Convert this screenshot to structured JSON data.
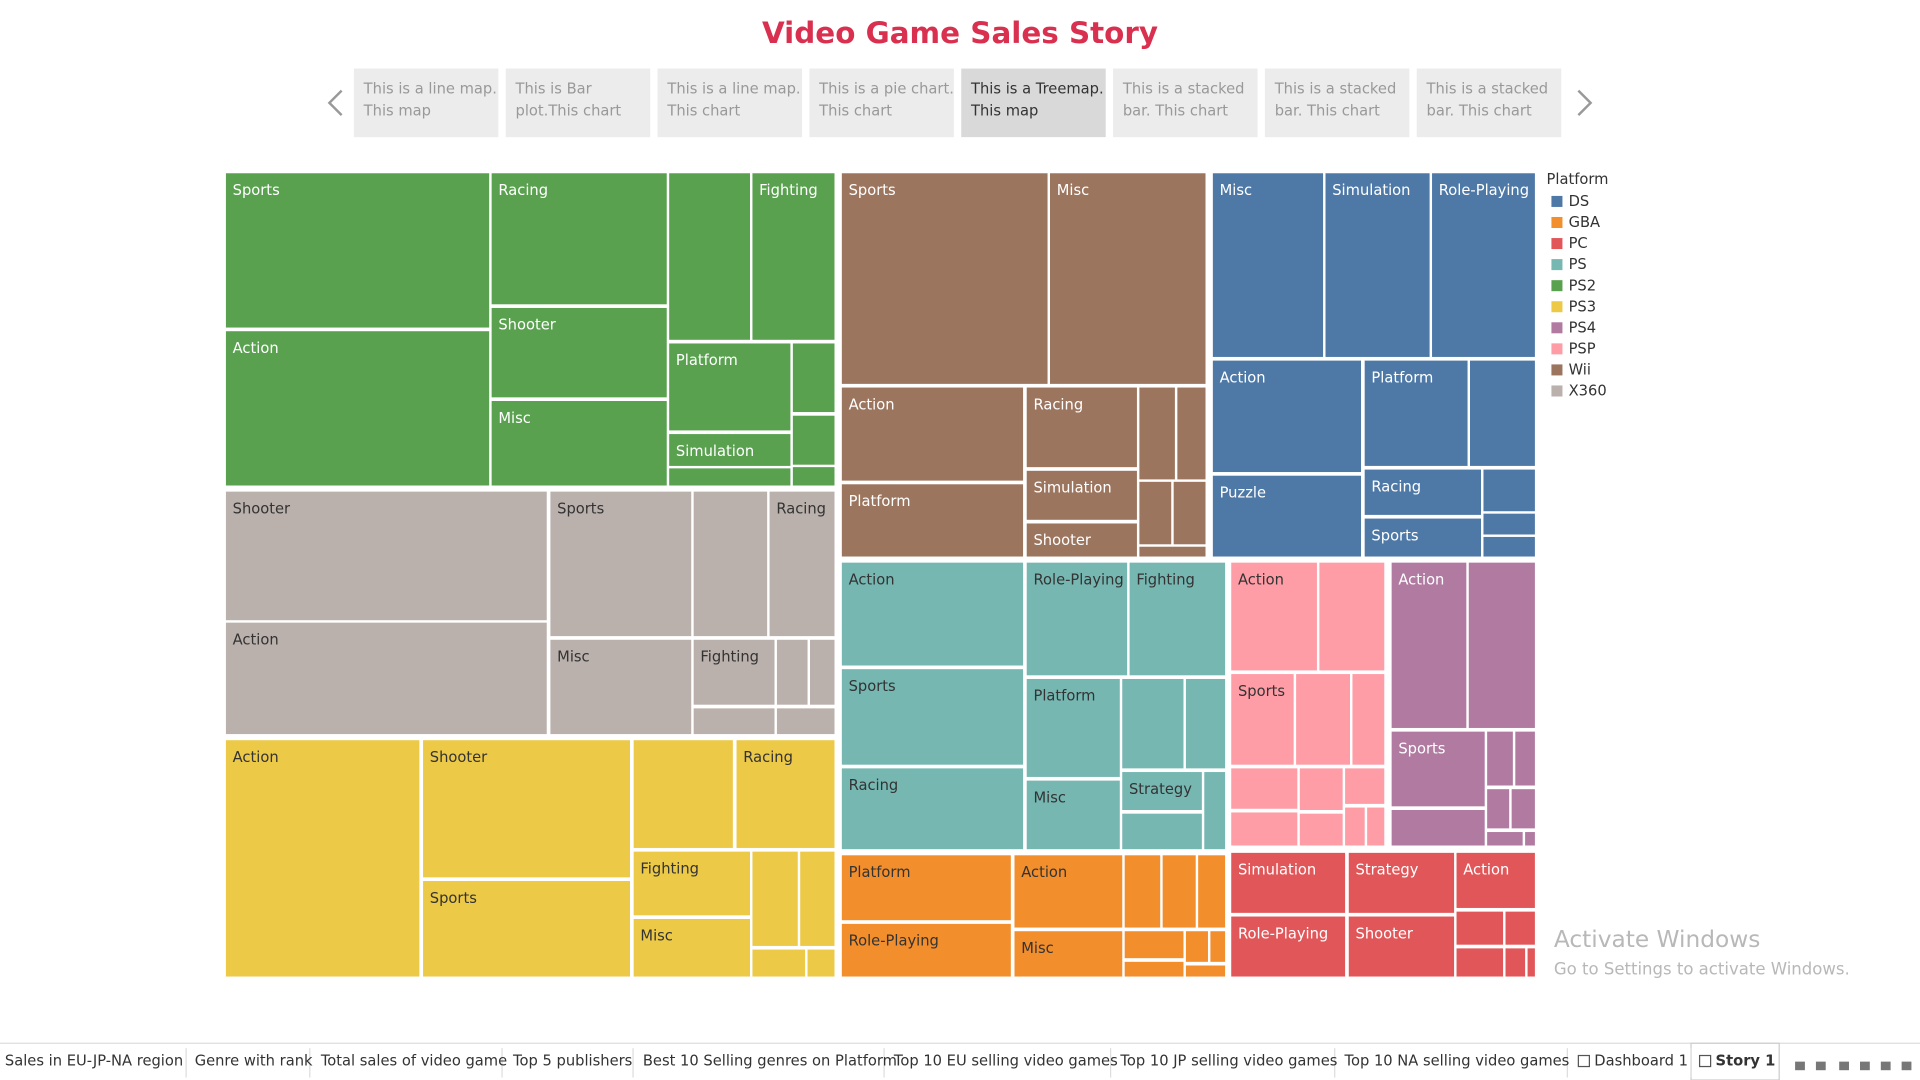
{
  "title": "Video Game Sales Story",
  "story_points": [
    {
      "lines": [
        "This is a line map.",
        "This  map"
      ]
    },
    {
      "lines": [
        "This is Bar",
        "plot.This chart"
      ]
    },
    {
      "lines": [
        "This is a line map.",
        "This chart"
      ]
    },
    {
      "lines": [
        "This is a pie chart.",
        "This chart"
      ]
    },
    {
      "lines": [
        "This is a Treemap.",
        "This map"
      ]
    },
    {
      "lines": [
        "This is a stacked",
        "bar. This chart"
      ]
    },
    {
      "lines": [
        "This is a stacked",
        "bar. This chart"
      ]
    },
    {
      "lines": [
        "This is a stacked",
        "bar. This chart"
      ]
    }
  ],
  "legend": {
    "title": "Platform",
    "items": [
      {
        "name": "DS",
        "color": "#4e79a7"
      },
      {
        "name": "GBA",
        "color": "#f28e2b"
      },
      {
        "name": "PC",
        "color": "#e15759"
      },
      {
        "name": "PS",
        "color": "#76b7b2"
      },
      {
        "name": "PS2",
        "color": "#59a14f"
      },
      {
        "name": "PS3",
        "color": "#edc948"
      },
      {
        "name": "PS4",
        "color": "#b07aa1"
      },
      {
        "name": "PSP",
        "color": "#ff9da7"
      },
      {
        "name": "Wii",
        "color": "#9c755f"
      },
      {
        "name": "X360",
        "color": "#bab0ac"
      }
    ]
  },
  "treemap": {
    "groups": [
      {
        "labels": [
          "Sports",
          "Action",
          "Racing",
          "Shooter",
          "Misc",
          "Fighting",
          "Platform",
          "Simulation"
        ]
      },
      {
        "labels": [
          "Shooter",
          "Action",
          "Sports",
          "Misc",
          "Racing",
          "Fighting"
        ]
      },
      {
        "labels": [
          "Action",
          "Shooter",
          "Sports",
          "Racing",
          "Fighting",
          "Misc"
        ]
      },
      {
        "labels": [
          "Sports",
          "Misc",
          "Action",
          "Platform",
          "Racing",
          "Simulation",
          "Shooter"
        ]
      },
      {
        "labels": [
          "Misc",
          "Simulation",
          "Role-Playing",
          "Action",
          "Puzzle",
          "Platform",
          "Racing",
          "Sports"
        ]
      },
      {
        "labels": [
          "Action",
          "Sports",
          "Racing",
          "Role-Playing",
          "Fighting",
          "Platform",
          "Misc",
          "Strategy"
        ]
      },
      {
        "labels": [
          "Platform",
          "Role-Playing",
          "Action",
          "Misc"
        ]
      },
      {
        "labels": [
          "Action",
          "Sports"
        ]
      },
      {
        "labels": [
          "Action",
          "Sports"
        ]
      },
      {
        "labels": [
          "Simulation",
          "Role-Playing",
          "Strategy",
          "Shooter",
          "Action"
        ]
      }
    ]
  },
  "watermark": {
    "title": "Activate Windows",
    "subtitle": "Go to Settings to activate Windows."
  },
  "tabs": [
    "Sales in EU-JP-NA region",
    "Genre with rank",
    "Total sales of video game",
    "Top 5 publishers",
    "Best  10 Selling genres on Platform",
    "Top 10 EU selling video games",
    "Top 10 JP selling video games",
    "Top 10 NA selling video games",
    "Dashboard 1",
    "Story 1"
  ]
}
